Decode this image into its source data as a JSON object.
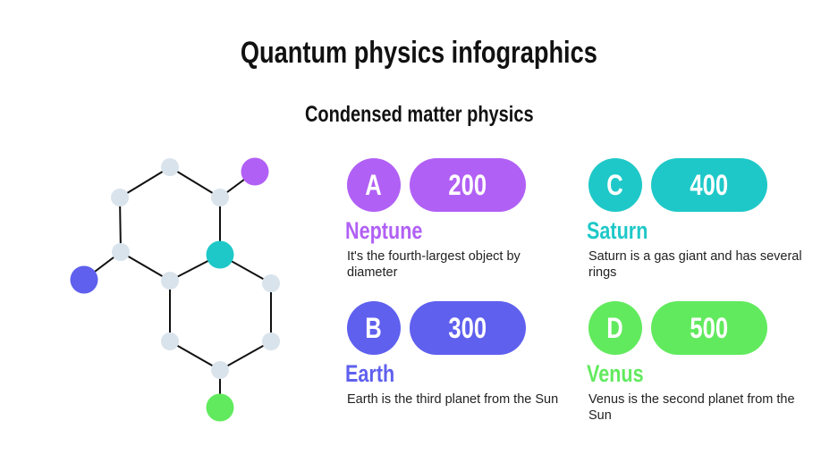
{
  "title": "Quantum physics infographics",
  "subtitle": "Condensed matter physics",
  "colors": {
    "node": "#d9e3ec",
    "edge": "#111111",
    "purple": "#b160f5",
    "blue": "#5f60ee",
    "teal": "#1fc8c8",
    "green": "#62ea5e"
  },
  "items": [
    {
      "letter": "A",
      "value": "200",
      "name": "Neptune",
      "description": "It's the fourth-largest object by diameter",
      "color": "#b160f5"
    },
    {
      "letter": "B",
      "value": "300",
      "name": "Earth",
      "description": "Earth is the third planet from the Sun",
      "color": "#5f60ee"
    },
    {
      "letter": "C",
      "value": "400",
      "name": "Saturn",
      "description": "Saturn is a gas giant and has several rings",
      "color": "#1fc8c8"
    },
    {
      "letter": "D",
      "value": "500",
      "name": "Venus",
      "description": "Venus is the second planet from the Sun",
      "color": "#62ea5e"
    }
  ]
}
